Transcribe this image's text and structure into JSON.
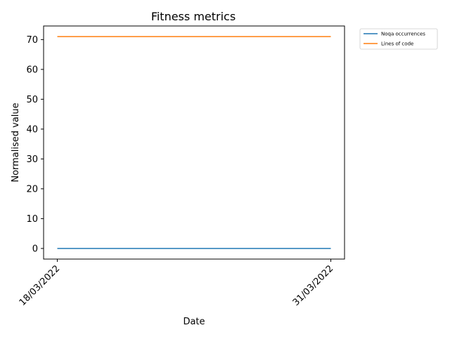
{
  "chart_data": {
    "type": "line",
    "title": "Fitness metrics",
    "xlabel": "Date",
    "ylabel": "Normalised value",
    "x": [
      "18/03/2022",
      "31/03/2022"
    ],
    "series": [
      {
        "name": "Noqa occurrences",
        "values": [
          0,
          0
        ],
        "color": "#1f77b4"
      },
      {
        "name": "Lines of code",
        "values": [
          71,
          71
        ],
        "color": "#ff7f0e"
      }
    ],
    "yticks": [
      0,
      10,
      20,
      30,
      40,
      50,
      60,
      70
    ],
    "ylim": [
      -3.55,
      74.55
    ],
    "grid": false,
    "legend_position": "outside-top-right"
  }
}
